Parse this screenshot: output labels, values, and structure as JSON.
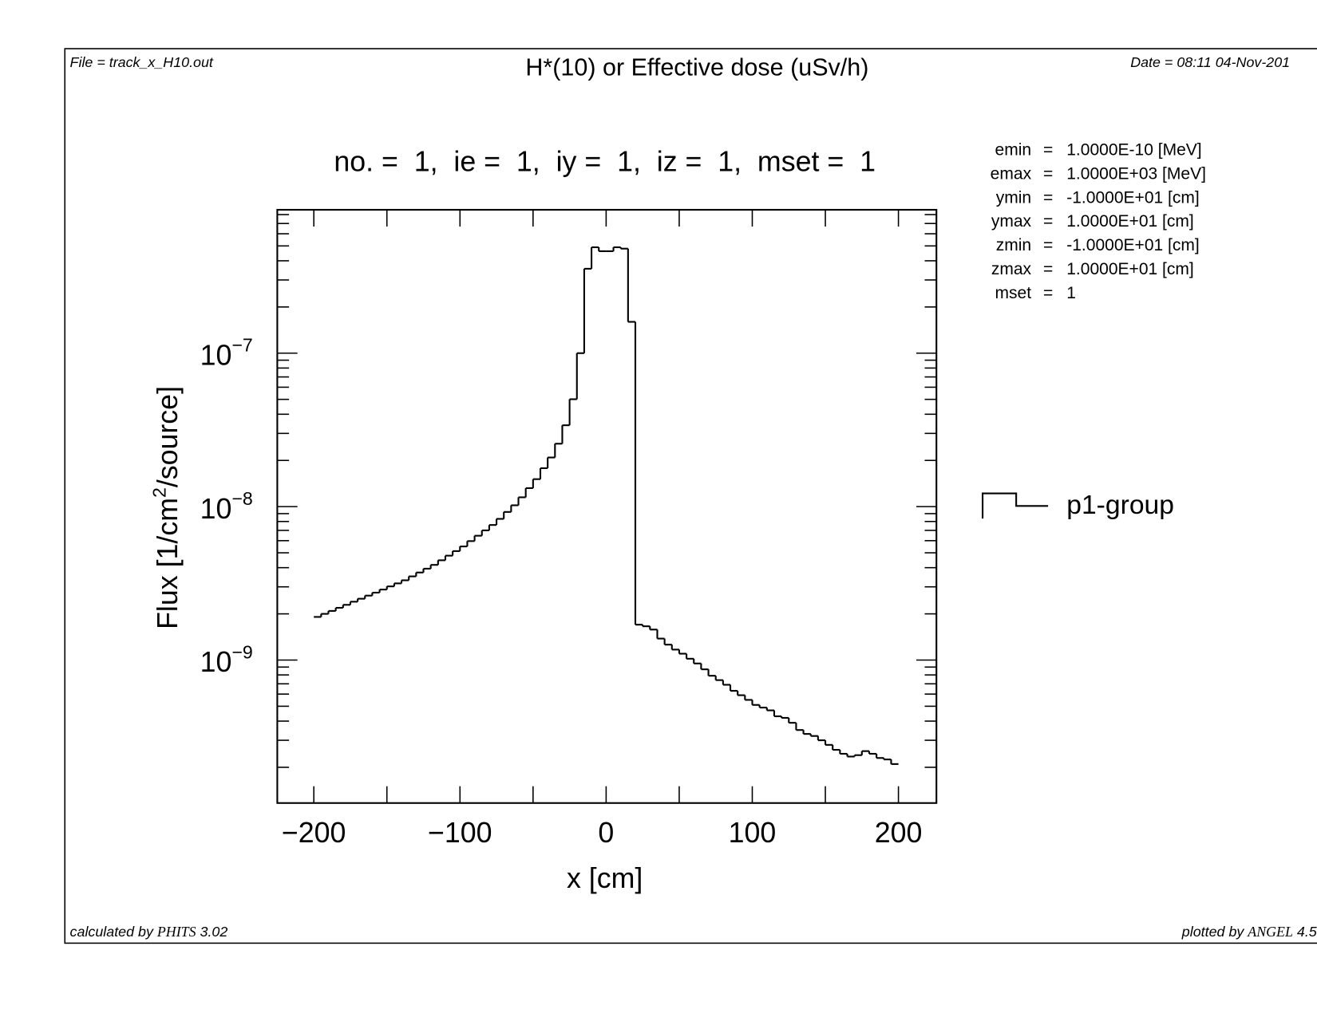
{
  "header": {
    "file": "File = track_x_H10.out",
    "title": "H*(10) or Effective dose (uSv/h)",
    "date": "Date = 08:11 04-Nov-201"
  },
  "footer": {
    "calculated_prefix": "calculated by ",
    "calculated_code": "PHITS",
    "calculated_version": " 3.02",
    "plotted_prefix": "plotted by ",
    "plotted_code": "ANGEL",
    "plotted_version": " 4.5"
  },
  "info": [
    {
      "label": "emin",
      "eq": "=",
      "value": " 1.0000E-10 [MeV]"
    },
    {
      "label": "emax",
      "eq": "=",
      "value": " 1.0000E+03 [MeV]"
    },
    {
      "label": "ymin",
      "eq": "=",
      "value": "-1.0000E+01 [cm]"
    },
    {
      "label": "ymax",
      "eq": "=",
      "value": " 1.0000E+01 [cm]"
    },
    {
      "label": "zmin",
      "eq": "=",
      "value": "-1.0000E+01 [cm]"
    },
    {
      "label": "zmax",
      "eq": "=",
      "value": " 1.0000E+01 [cm]"
    },
    {
      "label": "mset",
      "eq": "=",
      "value": " 1"
    }
  ],
  "chart_data": {
    "type": "line",
    "style": "histogram-step",
    "title": "no. =  1,  ie =  1,  iy =  1,  iz =  1,  mset =  1",
    "xlabel": "x [cm]",
    "ylabel_main": "Flux [1/cm",
    "ylabel_sup": "2",
    "ylabel_tail": "/source]",
    "xlim": [
      -225,
      226
    ],
    "ylim": [
      1.17e-10,
      8.6e-07
    ],
    "yscale": "log",
    "grid": false,
    "legend_position": "right",
    "x_ticks": [
      -200,
      -100,
      0,
      100,
      200
    ],
    "x_tick_labels": [
      "−200",
      "−100",
      "0",
      "100",
      "200"
    ],
    "x_minor_ticks": [
      -150,
      -50,
      50,
      150
    ],
    "y_ticks": [
      1e-07,
      1e-08,
      1e-09
    ],
    "y_tick_labels": [
      {
        "base": "10",
        "exp": "−7"
      },
      {
        "base": "10",
        "exp": "−8"
      },
      {
        "base": "10",
        "exp": "−9"
      }
    ],
    "series": [
      {
        "name": "p1-group",
        "bin_width": 5,
        "bin_edges_start": -200,
        "values": [
          1.91e-09,
          2e-09,
          2.09e-09,
          2.19e-09,
          2.29e-09,
          2.4e-09,
          2.51e-09,
          2.63e-09,
          2.75e-09,
          2.88e-09,
          3.02e-09,
          3.16e-09,
          3.31e-09,
          3.51e-09,
          3.72e-09,
          3.94e-09,
          4.17e-09,
          4.47e-09,
          4.79e-09,
          5.13e-09,
          5.5e-09,
          5.96e-09,
          6.46e-09,
          7e-09,
          7.59e-09,
          8.32e-09,
          9.23e-09,
          1.02e-08,
          1.15e-08,
          1.32e-08,
          1.51e-08,
          1.78e-08,
          2.09e-08,
          2.57e-08,
          3.39e-08,
          5.01e-08,
          1e-07,
          3.55e-07,
          4.9e-07,
          4.62e-07,
          4.62e-07,
          4.9e-07,
          4.8e-07,
          1.6e-07,
          1.7e-09,
          1.66e-09,
          1.58e-09,
          1.38e-09,
          1.26e-09,
          1.17e-09,
          1.1e-09,
          1.02e-09,
          9.5e-10,
          8.7e-10,
          7.9e-10,
          7.4e-10,
          6.9e-10,
          6.3e-10,
          5.9e-10,
          5.5e-10,
          5.1e-10,
          4.9e-10,
          4.7e-10,
          4.3e-10,
          4.2e-10,
          3.9e-10,
          3.5e-10,
          3.3e-10,
          3.2e-10,
          3e-10,
          2.8e-10,
          2.6e-10,
          2.45e-10,
          2.35e-10,
          2.4e-10,
          2.55e-10,
          2.45e-10,
          2.3e-10,
          2.25e-10,
          2.1e-10
        ]
      }
    ]
  }
}
